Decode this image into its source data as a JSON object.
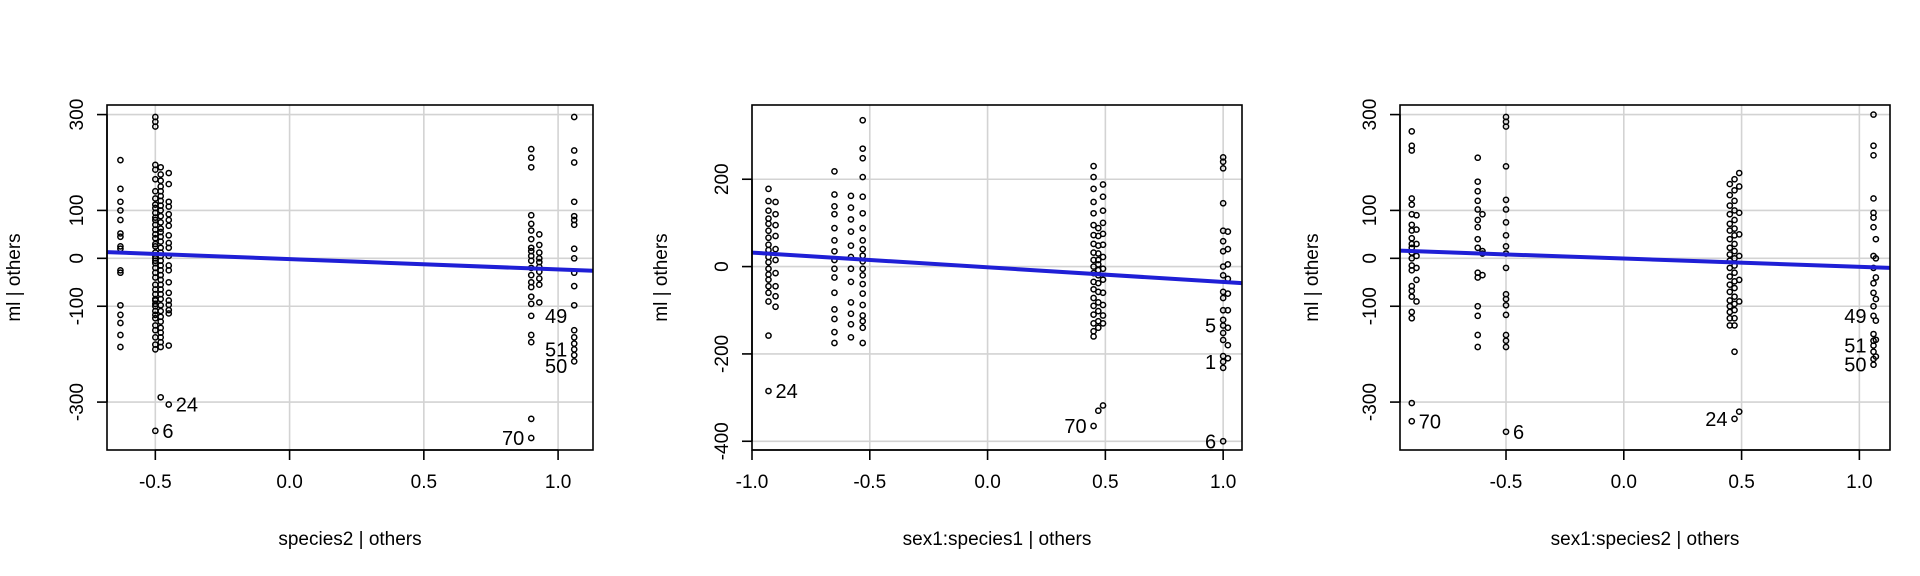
{
  "chart_data": [
    {
      "type": "scatter",
      "xlabel": "species2 | others",
      "ylabel": "ml  | others",
      "xlim": [
        -0.68,
        1.13
      ],
      "ylim": [
        -400,
        320
      ],
      "xticks": [
        -0.5,
        0.0,
        0.5,
        1.0
      ],
      "xtick_labels": [
        "-0.5",
        "0.0",
        "0.5",
        "1.0"
      ],
      "yticks": [
        -300,
        -100,
        0,
        100,
        300
      ],
      "ytick_labels": [
        "-300",
        "-100",
        "0",
        "100",
        "300"
      ],
      "grid": true,
      "fit_line": {
        "x": [
          -0.68,
          1.13
        ],
        "y": [
          13,
          -26
        ]
      },
      "point_groups": [
        {
          "x": -0.63,
          "y": [
            205,
            145,
            118,
            100,
            80,
            52,
            45,
            25,
            20,
            -25,
            -30,
            -98,
            -118,
            -135,
            -160,
            -185
          ]
        },
        {
          "x": -0.5,
          "y": [
            295,
            285,
            275,
            195,
            185,
            165,
            140,
            125,
            112,
            105,
            95,
            85,
            80,
            70,
            60,
            50,
            42,
            30,
            25,
            12,
            5,
            0,
            -5,
            -10,
            -20,
            -30,
            -40,
            -55,
            -65,
            -75,
            -85,
            -88,
            -95,
            -100,
            -110,
            -118,
            -125,
            -140,
            -150,
            -165,
            -180,
            -190,
            -360
          ]
        },
        {
          "x": -0.48,
          "y": [
            190,
            175,
            162,
            150,
            140,
            130,
            120,
            110,
            100,
            88,
            75,
            62,
            55,
            45,
            35,
            22,
            12,
            5,
            -5,
            -15,
            -25,
            -35,
            -45,
            -55,
            -65,
            -75,
            -85,
            -98,
            -110,
            -122,
            -132,
            -145,
            -155,
            -165,
            -175,
            -185,
            -290
          ]
        },
        {
          "x": -0.45,
          "y": [
            178,
            155,
            118,
            108,
            92,
            80,
            68,
            48,
            32,
            22,
            5,
            -15,
            -25,
            -50,
            -72,
            -88,
            -97,
            -108,
            -115,
            -182,
            -305
          ]
        },
        {
          "x": 0.9,
          "y": [
            228,
            210,
            190,
            90,
            72,
            58,
            40,
            22,
            15,
            5,
            -5,
            -20,
            -35,
            -50,
            -60,
            -80,
            -95,
            -120,
            -160,
            -175,
            -335,
            -375
          ]
        },
        {
          "x": 0.93,
          "y": [
            50,
            28,
            12,
            0,
            -8,
            -18,
            -28,
            -42,
            -55,
            -92
          ]
        },
        {
          "x": 1.06,
          "y": [
            295,
            225,
            200,
            118,
            88,
            80,
            70,
            20,
            0,
            -30,
            -58,
            -98,
            -150,
            -165,
            -178,
            -190,
            -202,
            -215
          ]
        }
      ],
      "labels": [
        {
          "text": "24",
          "x": -0.45,
          "y": -305
        },
        {
          "text": "6",
          "x": -0.5,
          "y": -360
        },
        {
          "text": "49",
          "x": 1.06,
          "y": -120
        },
        {
          "text": "51",
          "x": 1.06,
          "y": -190
        },
        {
          "text": "50",
          "x": 1.06,
          "y": -225
        },
        {
          "text": "70",
          "x": 0.9,
          "y": -375
        }
      ]
    },
    {
      "type": "scatter",
      "xlabel": "sex1:species1 | others",
      "ylabel": "ml  | others",
      "xlim": [
        -1.0,
        1.08
      ],
      "ylim": [
        -420,
        370
      ],
      "xticks": [
        -1.0,
        -0.5,
        0.0,
        0.5,
        1.0
      ],
      "xtick_labels": [
        "-1.0",
        "-0.5",
        "0.0",
        "0.5",
        "1.0"
      ],
      "yticks": [
        -400,
        -200,
        0,
        200
      ],
      "ytick_labels": [
        "-400",
        "-200",
        "0",
        "200"
      ],
      "grid": true,
      "fit_line": {
        "x": [
          -1.0,
          1.08
        ],
        "y": [
          32,
          -38
        ]
      },
      "point_groups": [
        {
          "x": -0.93,
          "y": [
            178,
            150,
            128,
            110,
            98,
            82,
            66,
            50,
            38,
            22,
            10,
            -5,
            -18,
            -30,
            -45,
            -60,
            -80,
            -158,
            -285
          ]
        },
        {
          "x": -0.9,
          "y": [
            148,
            120,
            95,
            70,
            40,
            15,
            -15,
            -45,
            -68,
            -92
          ]
        },
        {
          "x": -0.65,
          "y": [
            218,
            165,
            138,
            120,
            88,
            60,
            35,
            15,
            -5,
            -25,
            -60,
            -98,
            -120,
            -150,
            -175
          ]
        },
        {
          "x": -0.58,
          "y": [
            162,
            135,
            108,
            80,
            48,
            22,
            -5,
            -35,
            -82,
            -108,
            -132,
            -162
          ]
        },
        {
          "x": -0.53,
          "y": [
            335,
            270,
            248,
            205,
            160,
            122,
            88,
            60,
            40,
            25,
            12,
            -5,
            -20,
            -40,
            -62,
            -88,
            -112,
            -125,
            -140,
            -175
          ]
        },
        {
          "x": 0.45,
          "y": [
            230,
            205,
            178,
            148,
            122,
            95,
            72,
            52,
            32,
            15,
            0,
            -15,
            -35,
            -52,
            -72,
            -90,
            -110,
            -130,
            -148,
            -160,
            -365
          ]
        },
        {
          "x": 0.47,
          "y": [
            88,
            70,
            48,
            30,
            15,
            5,
            -8,
            -20,
            -38,
            -58,
            -82,
            -102,
            -125,
            -140,
            -330
          ]
        },
        {
          "x": 0.49,
          "y": [
            188,
            160,
            128,
            100,
            75,
            50,
            22,
            -5,
            -30,
            -60,
            -88,
            -112,
            -130,
            -318
          ]
        },
        {
          "x": 1.0,
          "y": [
            250,
            240,
            225,
            145,
            82,
            58,
            35,
            0,
            -20,
            -58,
            -72,
            -100,
            -122,
            -135,
            -152,
            -168,
            -205,
            -218,
            -232,
            -400
          ]
        },
        {
          "x": 1.02,
          "y": [
            80,
            40,
            5,
            -28,
            -62,
            -100,
            -140,
            -180,
            -210
          ]
        }
      ],
      "labels": [
        {
          "text": "24",
          "x": -0.93,
          "y": -285
        },
        {
          "text": "5",
          "x": 1.0,
          "y": -135
        },
        {
          "text": "1",
          "x": 1.0,
          "y": -218
        },
        {
          "text": "70",
          "x": 0.45,
          "y": -365
        },
        {
          "text": "6",
          "x": 1.0,
          "y": -400
        }
      ]
    },
    {
      "type": "scatter",
      "xlabel": "sex1:species2 | others",
      "ylabel": "ml  | others",
      "xlim": [
        -0.95,
        1.13
      ],
      "ylim": [
        -400,
        320
      ],
      "xticks": [
        -0.5,
        0.0,
        0.5,
        1.0
      ],
      "xtick_labels": [
        "-0.5",
        "0.0",
        "0.5",
        "1.0"
      ],
      "yticks": [
        -300,
        -100,
        0,
        100,
        300
      ],
      "ytick_labels": [
        "-300",
        "-100",
        "0",
        "100",
        "300"
      ],
      "grid": true,
      "fit_line": {
        "x": [
          -0.95,
          1.13
        ],
        "y": [
          16,
          -20
        ]
      },
      "point_groups": [
        {
          "x": -0.9,
          "y": [
            265,
            235,
            225,
            125,
            112,
            92,
            70,
            58,
            42,
            30,
            22,
            12,
            0,
            -15,
            -25,
            -58,
            -68,
            -80,
            -112,
            -125,
            -302,
            -340
          ]
        },
        {
          "x": -0.88,
          "y": [
            90,
            60,
            30,
            5,
            -20,
            -45,
            -90
          ]
        },
        {
          "x": -0.62,
          "y": [
            210,
            160,
            140,
            120,
            102,
            80,
            65,
            40,
            22,
            -30,
            -40,
            -100,
            -120,
            -160,
            -185
          ]
        },
        {
          "x": -0.6,
          "y": [
            92,
            15,
            10,
            -35
          ]
        },
        {
          "x": -0.5,
          "y": [
            295,
            285,
            275,
            192,
            122,
            102,
            75,
            48,
            25,
            10,
            -20,
            -75,
            -85,
            -98,
            -118,
            -160,
            -172,
            -185,
            -362
          ]
        },
        {
          "x": 0.45,
          "y": [
            155,
            132,
            110,
            92,
            72,
            58,
            40,
            22,
            8,
            -5,
            -20,
            -38,
            -55,
            -70,
            -88,
            -100,
            -112,
            -125,
            -140
          ]
        },
        {
          "x": 0.47,
          "y": [
            165,
            142,
            120,
            100,
            80,
            62,
            48,
            30,
            15,
            0,
            -15,
            -30,
            -48,
            -62,
            -80,
            -95,
            -108,
            -125,
            -140,
            -195,
            -335
          ]
        },
        {
          "x": 0.49,
          "y": [
            178,
            150,
            95,
            50,
            5,
            -45,
            -90,
            -320
          ]
        },
        {
          "x": 1.06,
          "y": [
            300,
            235,
            215,
            125,
            95,
            85,
            65,
            5,
            -20,
            -52,
            -72,
            -100,
            -120,
            -158,
            -172,
            -182,
            -195,
            -210,
            -222
          ]
        },
        {
          "x": 1.07,
          "y": [
            40,
            0,
            -40,
            -85,
            -130,
            -170,
            -205
          ]
        }
      ],
      "labels": [
        {
          "text": "49",
          "x": 1.06,
          "y": -120
        },
        {
          "text": "51",
          "x": 1.06,
          "y": -182
        },
        {
          "text": "50",
          "x": 1.06,
          "y": -222
        },
        {
          "text": "70",
          "x": -0.9,
          "y": -340
        },
        {
          "text": "6",
          "x": -0.5,
          "y": -362
        },
        {
          "text": "24",
          "x": 0.47,
          "y": -335
        }
      ]
    }
  ]
}
